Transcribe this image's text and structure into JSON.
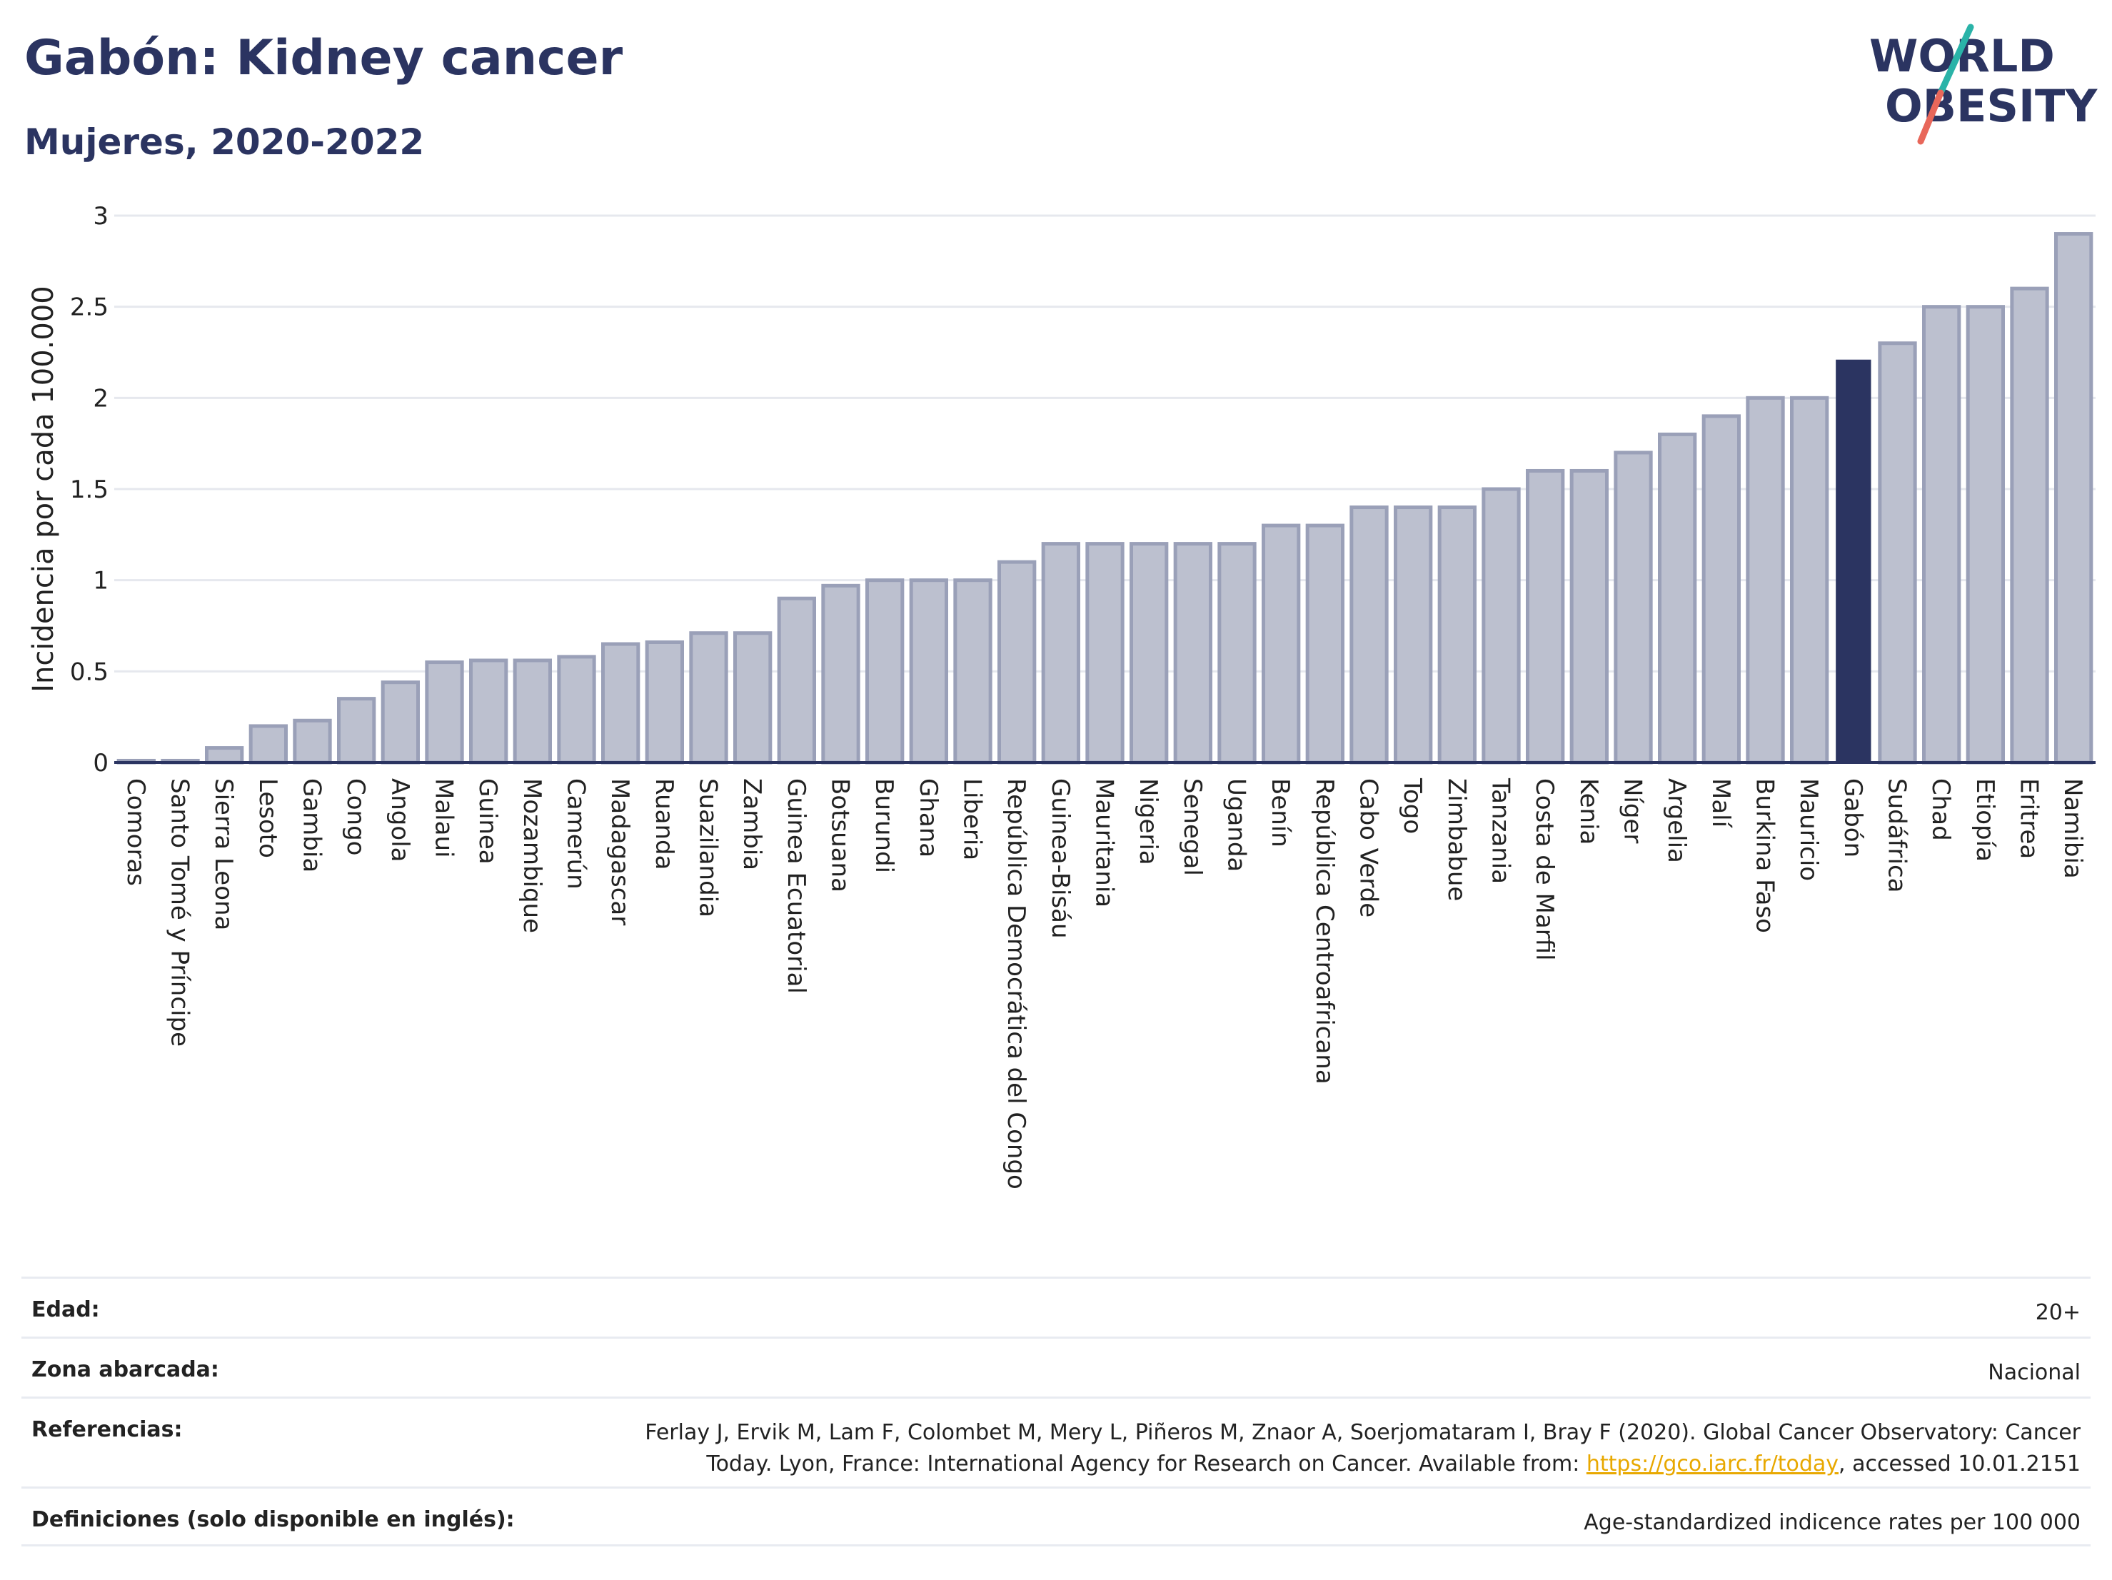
{
  "header": {
    "title": "Gabón: Kidney cancer",
    "subtitle": "Mujeres, 2020-2022"
  },
  "logo": {
    "line1": "WORLD",
    "line2": "OBESITY",
    "colors": {
      "text": "#2b3461",
      "slash_teal": "#2ab3a8",
      "slash_coral": "#e8675a"
    }
  },
  "colors": {
    "bar": "#bcc0cf",
    "bar_border": "#9aa0b8",
    "highlight": "#2b3461",
    "grid": "#e6e8ee",
    "axis": "#2b3461"
  },
  "chart_data": {
    "type": "bar",
    "ylabel": "Incidencia por cada 100.000",
    "xlabel": "",
    "ylim": [
      0,
      3
    ],
    "yticks": [
      0,
      0.5,
      1,
      1.5,
      2,
      2.5,
      3
    ],
    "ytick_labels": [
      "0",
      "0.5",
      "1",
      "1.5",
      "2",
      "2.5",
      "3"
    ],
    "grid": true,
    "highlight": "Gabón",
    "categories": [
      "Comoras",
      "Santo Tomé y Príncipe",
      "Sierra Leona",
      "Lesoto",
      "Gambia",
      "Congo",
      "Angola",
      "Malaui",
      "Guinea",
      "Mozambique",
      "Camerún",
      "Madagascar",
      "Ruanda",
      "Suazilandia",
      "Zambia",
      "Guinea Ecuatorial",
      "Botsuana",
      "Burundi",
      "Ghana",
      "Liberia",
      "República Democrática del Congo",
      "Guinea-Bisáu",
      "Mauritania",
      "Nigeria",
      "Senegal",
      "Uganda",
      "Benín",
      "República Centroafricana",
      "Cabo Verde",
      "Togo",
      "Zimbabue",
      "Tanzania",
      "Costa de Marfil",
      "Kenia",
      "Níger",
      "Argelia",
      "Malí",
      "Burkina Faso",
      "Mauricio",
      "Gabón",
      "Sudáfrica",
      "Chad",
      "Etiopía",
      "Eritrea",
      "Namibia"
    ],
    "values": [
      0.01,
      0.01,
      0.08,
      0.2,
      0.23,
      0.35,
      0.44,
      0.55,
      0.56,
      0.56,
      0.58,
      0.65,
      0.66,
      0.71,
      0.71,
      0.9,
      0.97,
      1.0,
      1.0,
      1.0,
      1.1,
      1.2,
      1.2,
      1.2,
      1.2,
      1.2,
      1.3,
      1.3,
      1.4,
      1.4,
      1.4,
      1.5,
      1.6,
      1.6,
      1.7,
      1.8,
      1.9,
      2.0,
      2.0,
      2.21,
      2.3,
      2.5,
      2.5,
      2.6,
      2.9
    ]
  },
  "meta": {
    "rows": [
      {
        "label": "Edad:",
        "value": "20+"
      },
      {
        "label": "Zona abarcada:",
        "value": "Nacional"
      },
      {
        "label": "Referencias:",
        "value_line1": "Ferlay J, Ervik M, Lam F, Colombet M, Mery L, Piñeros M, Znaor A, Soerjomataram I, Bray F (2020). Global Cancer Observatory: Cancer",
        "value_line2_pre": "Today. Lyon, France: International Agency for Research on Cancer. Available from: ",
        "link": "https://gco.iarc.fr/today",
        "value_line2_post": ", accessed 10.01.2151"
      },
      {
        "label": "Definiciones (solo disponible en inglés):",
        "value": "Age-standardized indicence rates per 100 000"
      }
    ]
  }
}
